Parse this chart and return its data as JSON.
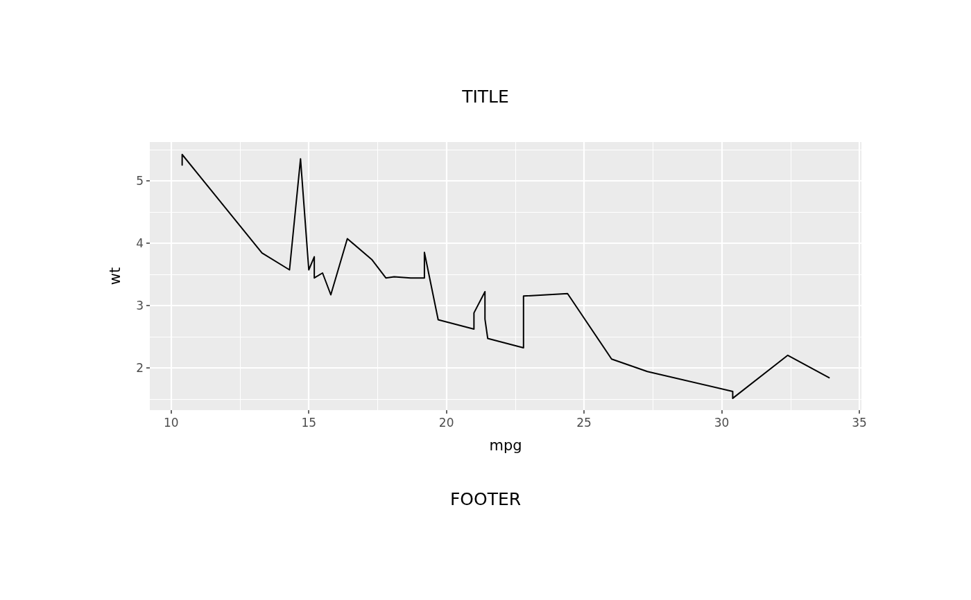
{
  "chart_data": {
    "type": "line",
    "title": "TITLE",
    "xlabel": "mpg",
    "ylabel": "wt",
    "annotations": [
      "FOOTER"
    ],
    "x": [
      10.4,
      10.4,
      13.3,
      14.3,
      14.7,
      15.0,
      15.2,
      15.2,
      15.5,
      15.8,
      16.4,
      17.3,
      17.8,
      18.1,
      18.7,
      19.2,
      19.2,
      19.7,
      21.0,
      21.0,
      21.4,
      21.4,
      21.5,
      22.8,
      22.8,
      24.4,
      26.0,
      27.3,
      30.4,
      30.4,
      32.4,
      33.9
    ],
    "series": [
      {
        "color": "#000000",
        "values": [
          5.25,
          5.42,
          3.84,
          3.57,
          5.35,
          3.57,
          3.78,
          3.44,
          3.52,
          3.17,
          4.07,
          3.73,
          3.44,
          3.46,
          3.44,
          3.44,
          3.85,
          2.77,
          2.62,
          2.88,
          3.22,
          2.78,
          2.47,
          2.32,
          3.15,
          3.19,
          2.14,
          1.94,
          1.62,
          1.51,
          2.2,
          1.84
        ]
      }
    ],
    "xlim": [
      9.225,
      35.075
    ],
    "xticks": [
      10,
      15,
      20,
      25,
      30,
      35
    ],
    "ylim": [
      1.32,
      5.62
    ],
    "yticks": [
      2,
      3,
      4,
      5
    ],
    "grid": true,
    "marker": "none",
    "line_style": "solid"
  }
}
